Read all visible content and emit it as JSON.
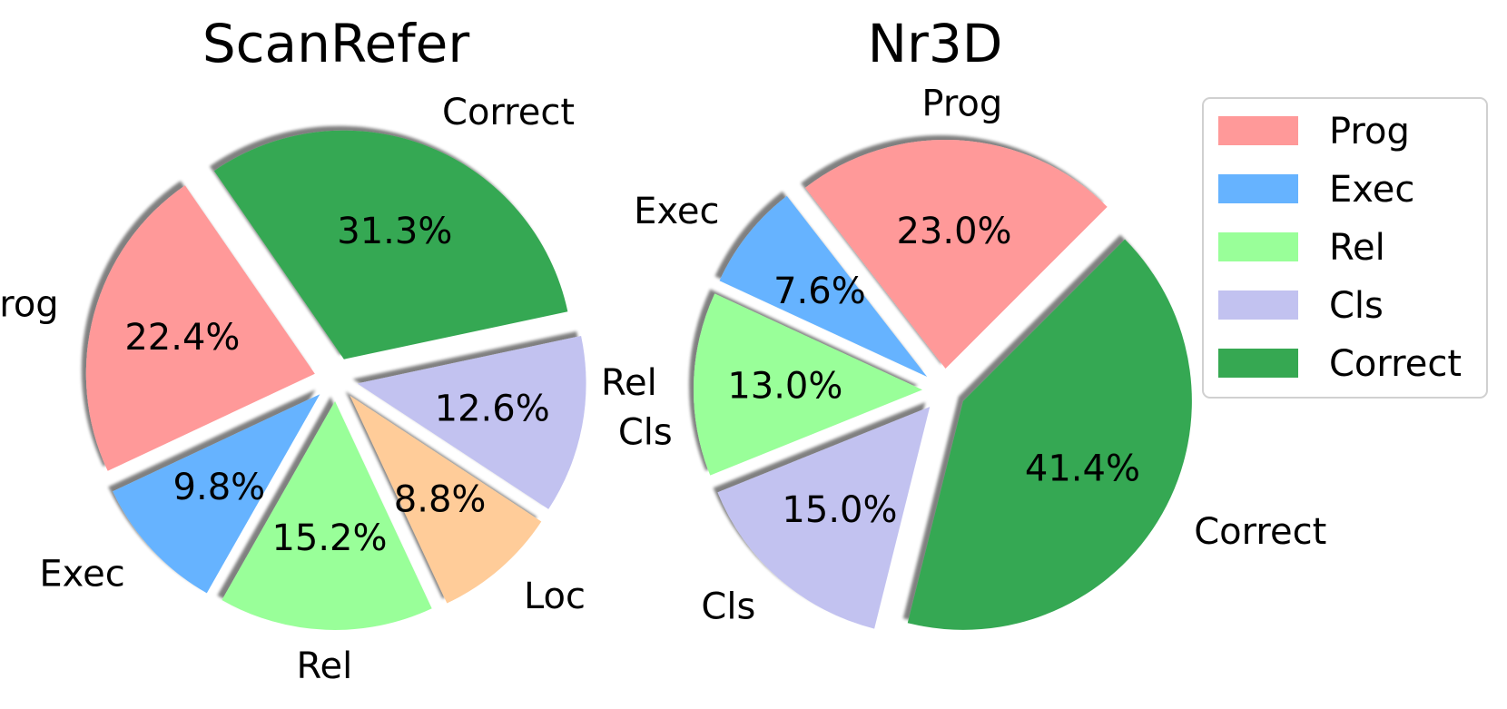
{
  "chart_data": [
    {
      "type": "pie",
      "title": "ScanRefer",
      "slices": [
        {
          "label": "Correct",
          "value": 31.3,
          "pct_label": "31.3%",
          "color": "#36a852"
        },
        {
          "label": "Prog",
          "value": 22.4,
          "pct_label": "22.4%",
          "color": "#ff9999"
        },
        {
          "label": "Exec",
          "value": 9.8,
          "pct_label": "9.8%",
          "color": "#66b3ff"
        },
        {
          "label": "Rel",
          "value": 15.2,
          "pct_label": "15.2%",
          "color": "#99ff99"
        },
        {
          "label": "Loc",
          "value": 8.8,
          "pct_label": "8.8%",
          "color": "#ffcc99"
        },
        {
          "label": "Cls",
          "value": 12.6,
          "pct_label": "12.6%",
          "color": "#c2c2f0"
        }
      ]
    },
    {
      "type": "pie",
      "title": "Nr3D",
      "slices": [
        {
          "label": "Prog",
          "value": 23.0,
          "pct_label": "23.0%",
          "color": "#ff9999"
        },
        {
          "label": "Exec",
          "value": 7.6,
          "pct_label": "7.6%",
          "color": "#66b3ff"
        },
        {
          "label": "Rel",
          "value": 13.0,
          "pct_label": "13.0%",
          "color": "#99ff99"
        },
        {
          "label": "Cls",
          "value": 15.0,
          "pct_label": "15.0%",
          "color": "#c2c2f0"
        },
        {
          "label": "Correct",
          "value": 41.4,
          "pct_label": "41.4%",
          "color": "#36a852"
        }
      ]
    }
  ],
  "legend": {
    "placement": "right",
    "items": [
      {
        "label": "Prog",
        "color": "#ff9999"
      },
      {
        "label": "Exec",
        "color": "#66b3ff"
      },
      {
        "label": "Rel",
        "color": "#99ff99"
      },
      {
        "label": "Cls",
        "color": "#c2c2f0"
      },
      {
        "label": "Correct",
        "color": "#36a852"
      }
    ]
  }
}
